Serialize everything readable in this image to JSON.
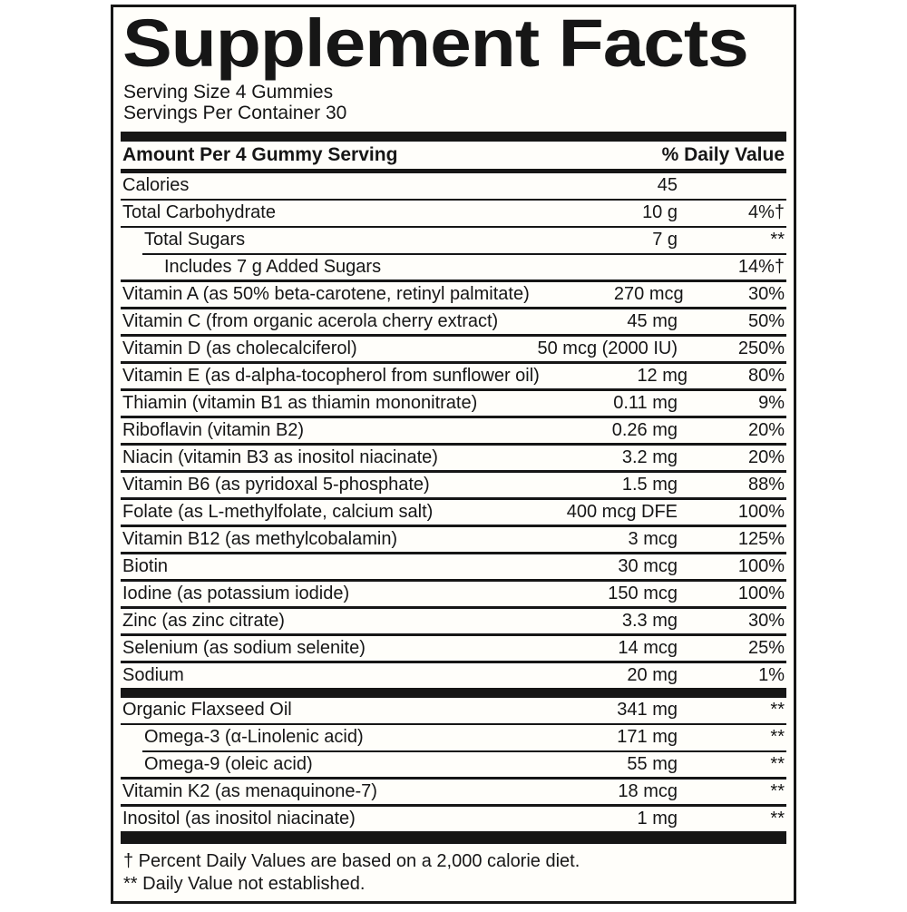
{
  "colors": {
    "ink": "#161616",
    "paper": "#fffefa"
  },
  "label": {
    "title": "Supplement Facts",
    "serving_size": "Serving Size 4 Gummies",
    "servings_per_container": "Servings Per Container 30",
    "columns": {
      "amount_header": "Amount Per 4 Gummy Serving",
      "dv_header": "% Daily Value"
    },
    "rows": [
      {
        "name": "Calories",
        "amount": "45",
        "dv": "",
        "indent": 0,
        "sep": "none"
      },
      {
        "name": "Total Carbohydrate",
        "amount": "10 g",
        "dv": "4%†",
        "indent": 0,
        "sep": "full"
      },
      {
        "name": "Total Sugars",
        "amount": "7 g",
        "dv": "**",
        "indent": 1,
        "sep": "full"
      },
      {
        "name": "Includes 7 g Added Sugars",
        "amount": "",
        "dv": "14%†",
        "indent": 2,
        "sep": "partial"
      },
      {
        "name": "Vitamin A (as 50% beta-carotene, retinyl palmitate)",
        "amount": "270 mcg",
        "dv": "30%",
        "indent": 0,
        "sep": "full"
      },
      {
        "name": "Vitamin C (from organic acerola cherry extract)",
        "amount": "45 mg",
        "dv": "50%",
        "indent": 0,
        "sep": "full"
      },
      {
        "name": "Vitamin D (as cholecalciferol)",
        "amount": "50 mcg (2000 IU)",
        "dv": "250%",
        "indent": 0,
        "sep": "full"
      },
      {
        "name": "Vitamin E (as d-alpha-tocopherol from sunflower oil)",
        "amount": "12 mg",
        "dv": "80%",
        "indent": 0,
        "sep": "full"
      },
      {
        "name": "Thiamin (vitamin B1 as thiamin mononitrate)",
        "amount": "0.11 mg",
        "dv": "9%",
        "indent": 0,
        "sep": "full"
      },
      {
        "name": "Riboflavin (vitamin B2)",
        "amount": "0.26 mg",
        "dv": "20%",
        "indent": 0,
        "sep": "full"
      },
      {
        "name": "Niacin (vitamin B3 as inositol niacinate)",
        "amount": "3.2 mg",
        "dv": "20%",
        "indent": 0,
        "sep": "full"
      },
      {
        "name": "Vitamin B6 (as pyridoxal 5-phosphate)",
        "amount": "1.5 mg",
        "dv": "88%",
        "indent": 0,
        "sep": "full"
      },
      {
        "name": "Folate (as L-methylfolate, calcium salt)",
        "amount": "400 mcg DFE",
        "dv": "100%",
        "indent": 0,
        "sep": "full"
      },
      {
        "name": "Vitamin B12 (as methylcobalamin)",
        "amount": "3 mcg",
        "dv": "125%",
        "indent": 0,
        "sep": "full"
      },
      {
        "name": "Biotin",
        "amount": "30 mcg",
        "dv": "100%",
        "indent": 0,
        "sep": "full"
      },
      {
        "name": "Iodine (as potassium iodide)",
        "amount": "150 mcg",
        "dv": "100%",
        "indent": 0,
        "sep": "full"
      },
      {
        "name": "Zinc (as zinc citrate)",
        "amount": "3.3 mg",
        "dv": "30%",
        "indent": 0,
        "sep": "full"
      },
      {
        "name": "Selenium (as sodium selenite)",
        "amount": "14 mcg",
        "dv": "25%",
        "indent": 0,
        "sep": "full"
      },
      {
        "name": "Sodium",
        "amount": "20 mg",
        "dv": "1%",
        "indent": 0,
        "sep": "full"
      },
      {
        "name": "Organic Flaxseed Oil",
        "amount": "341 mg",
        "dv": "**",
        "indent": 0,
        "sep": "bar"
      },
      {
        "name": "Omega-3 (α-Linolenic acid)",
        "amount": "171 mg",
        "dv": "**",
        "indent": 1,
        "sep": "full"
      },
      {
        "name": "Omega-9 (oleic acid)",
        "amount": "55 mg",
        "dv": "**",
        "indent": 1,
        "sep": "partial"
      },
      {
        "name": "Vitamin K2 (as menaquinone-7)",
        "amount": "18 mcg",
        "dv": "**",
        "indent": 0,
        "sep": "full"
      },
      {
        "name": "Inositol (as inositol niacinate)",
        "amount": "1 mg",
        "dv": "**",
        "indent": 0,
        "sep": "full"
      }
    ],
    "footnotes": [
      "† Percent Daily Values are based on a 2,000 calorie diet.",
      "** Daily Value not established."
    ]
  }
}
